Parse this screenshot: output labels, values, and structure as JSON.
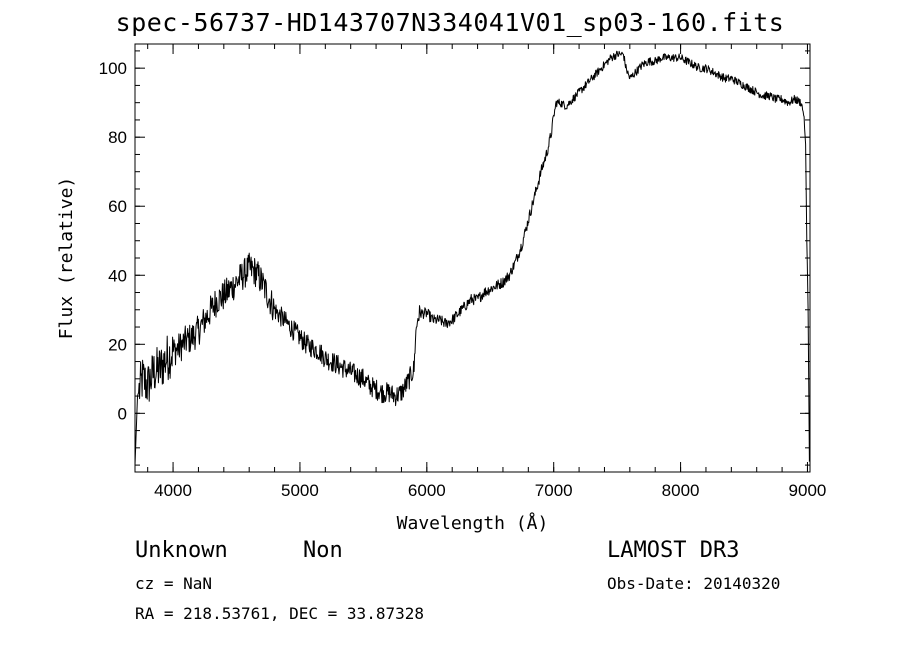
{
  "chart_data": {
    "type": "line",
    "title": "spec-56737-HD143707N334041V01_sp03-160.fits",
    "xlabel": "Wavelength (Å)",
    "ylabel": "Flux (relative)",
    "xlim": [
      3700,
      9020
    ],
    "ylim": [
      -17,
      107
    ],
    "x_ticks": [
      4000,
      5000,
      6000,
      7000,
      8000,
      9000
    ],
    "y_ticks": [
      0,
      20,
      40,
      60,
      80,
      100
    ],
    "x_tick_labels": [
      "4000",
      "5000",
      "6000",
      "7000",
      "8000",
      "9000"
    ],
    "y_tick_labels": [
      "0",
      "20",
      "40",
      "60",
      "80",
      "100"
    ],
    "x_minor_step": 200,
    "y_minor_step": 5,
    "series": [
      {
        "name": "spectrum",
        "points": [
          [
            3700,
            -15
          ],
          [
            3720,
            5
          ],
          [
            3760,
            10
          ],
          [
            3800,
            8
          ],
          [
            3850,
            12
          ],
          [
            3900,
            13
          ],
          [
            3950,
            16
          ],
          [
            4000,
            18
          ],
          [
            4050,
            19
          ],
          [
            4100,
            21
          ],
          [
            4150,
            22
          ],
          [
            4200,
            24
          ],
          [
            4250,
            27
          ],
          [
            4300,
            30
          ],
          [
            4350,
            33
          ],
          [
            4400,
            34
          ],
          [
            4450,
            36
          ],
          [
            4500,
            38
          ],
          [
            4550,
            40
          ],
          [
            4600,
            42
          ],
          [
            4650,
            41
          ],
          [
            4700,
            38
          ],
          [
            4750,
            34
          ],
          [
            4800,
            30
          ],
          [
            4850,
            28
          ],
          [
            4900,
            26
          ],
          [
            4950,
            24
          ],
          [
            5000,
            22
          ],
          [
            5050,
            20
          ],
          [
            5100,
            19
          ],
          [
            5150,
            18
          ],
          [
            5200,
            16
          ],
          [
            5250,
            15
          ],
          [
            5300,
            14
          ],
          [
            5350,
            13
          ],
          [
            5400,
            12
          ],
          [
            5450,
            11
          ],
          [
            5500,
            10
          ],
          [
            5550,
            8
          ],
          [
            5600,
            7
          ],
          [
            5650,
            6
          ],
          [
            5700,
            6
          ],
          [
            5750,
            5
          ],
          [
            5800,
            6
          ],
          [
            5850,
            9
          ],
          [
            5900,
            13
          ],
          [
            5910,
            22
          ],
          [
            5930,
            28
          ],
          [
            5950,
            29
          ],
          [
            6000,
            29
          ],
          [
            6050,
            27
          ],
          [
            6100,
            27
          ],
          [
            6150,
            26
          ],
          [
            6200,
            27
          ],
          [
            6250,
            29
          ],
          [
            6300,
            31
          ],
          [
            6350,
            33
          ],
          [
            6400,
            33
          ],
          [
            6450,
            35
          ],
          [
            6500,
            36
          ],
          [
            6550,
            37
          ],
          [
            6600,
            38
          ],
          [
            6650,
            40
          ],
          [
            6700,
            44
          ],
          [
            6750,
            49
          ],
          [
            6800,
            56
          ],
          [
            6850,
            63
          ],
          [
            6900,
            70
          ],
          [
            6950,
            76
          ],
          [
            6980,
            81
          ],
          [
            7000,
            86
          ],
          [
            7020,
            90
          ],
          [
            7050,
            90
          ],
          [
            7100,
            89
          ],
          [
            7150,
            91
          ],
          [
            7200,
            93
          ],
          [
            7250,
            95
          ],
          [
            7300,
            97
          ],
          [
            7350,
            99
          ],
          [
            7400,
            101
          ],
          [
            7450,
            103
          ],
          [
            7500,
            104
          ],
          [
            7550,
            104
          ],
          [
            7570,
            100
          ],
          [
            7600,
            97
          ],
          [
            7650,
            99
          ],
          [
            7700,
            101
          ],
          [
            7750,
            102
          ],
          [
            7800,
            102
          ],
          [
            7850,
            103
          ],
          [
            7900,
            103
          ],
          [
            7950,
            103
          ],
          [
            8000,
            103
          ],
          [
            8050,
            102
          ],
          [
            8100,
            101
          ],
          [
            8150,
            100
          ],
          [
            8200,
            100
          ],
          [
            8250,
            99
          ],
          [
            8300,
            98
          ],
          [
            8350,
            97
          ],
          [
            8400,
            97
          ],
          [
            8450,
            96
          ],
          [
            8500,
            95
          ],
          [
            8550,
            94
          ],
          [
            8600,
            93
          ],
          [
            8650,
            92
          ],
          [
            8700,
            92
          ],
          [
            8750,
            91
          ],
          [
            8800,
            91
          ],
          [
            8850,
            90
          ],
          [
            8900,
            91
          ],
          [
            8950,
            90
          ],
          [
            8970,
            87
          ],
          [
            8985,
            78
          ],
          [
            8995,
            50
          ],
          [
            9005,
            30
          ],
          [
            9010,
            10
          ],
          [
            9015,
            -14
          ]
        ]
      }
    ]
  },
  "annotations": {
    "class_label": "Unknown",
    "subclass_label": "Non",
    "cz": "cz = NaN",
    "coords": "RA = 218.53761, DEC =  33.87328",
    "survey": "LAMOST DR3",
    "obs_date": "Obs-Date: 20140320"
  }
}
